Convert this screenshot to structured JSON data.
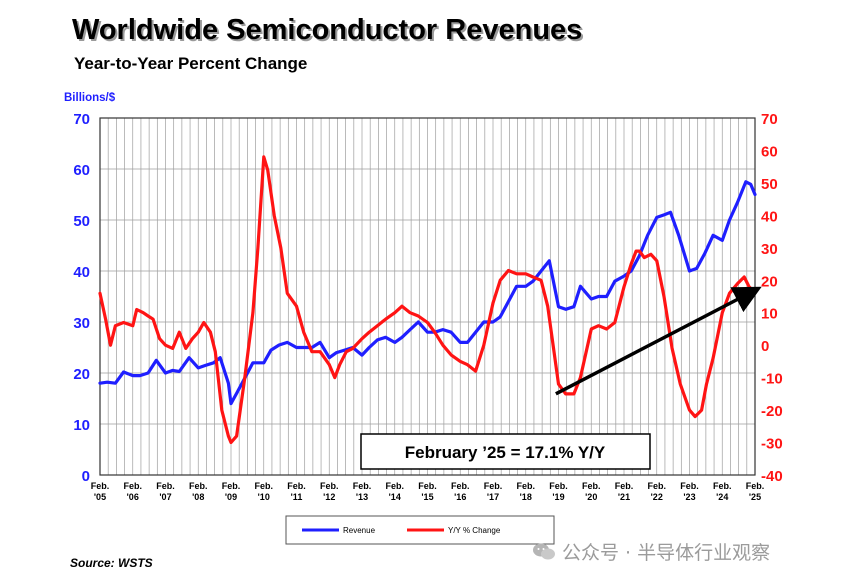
{
  "title": "Worldwide Semiconductor Revenues",
  "subtitle": "Year-to-Year Percent Change",
  "source": "Source: WSTS",
  "watermark": "公众号 · 半导体行业观察",
  "callout": "February ’25 = 17.1% Y/Y",
  "colors": {
    "revenue": "#1f1fff",
    "yoy": "#ff1414",
    "grid": "#9e9e9e",
    "plot_bg": "#ffffff"
  },
  "chart_data": {
    "type": "line",
    "y_left_unit_label": "Billions/$",
    "y_left": {
      "min": 0,
      "max": 70,
      "ticks": [
        0,
        10,
        20,
        30,
        40,
        50,
        60,
        70
      ]
    },
    "y_right": {
      "min": -40,
      "max": 70,
      "ticks": [
        -40,
        -30,
        -20,
        -10,
        0,
        10,
        20,
        30,
        40,
        50,
        60,
        70
      ]
    },
    "x_ticks": [
      {
        "top": "Feb.",
        "bottom": "'05",
        "x": 2005.08
      },
      {
        "top": "Feb.",
        "bottom": "'06",
        "x": 2006.08
      },
      {
        "top": "Feb.",
        "bottom": "'07",
        "x": 2007.08
      },
      {
        "top": "Feb.",
        "bottom": "'08",
        "x": 2008.08
      },
      {
        "top": "Feb.",
        "bottom": "'09",
        "x": 2009.08
      },
      {
        "top": "Feb.",
        "bottom": "'10",
        "x": 2010.08
      },
      {
        "top": "Feb.",
        "bottom": "'11",
        "x": 2011.08
      },
      {
        "top": "Feb.",
        "bottom": "'12",
        "x": 2012.08
      },
      {
        "top": "Feb.",
        "bottom": "'13",
        "x": 2013.08
      },
      {
        "top": "Feb.",
        "bottom": "'14",
        "x": 2014.08
      },
      {
        "top": "Feb.",
        "bottom": "'15",
        "x": 2015.08
      },
      {
        "top": "Feb.",
        "bottom": "'16",
        "x": 2016.08
      },
      {
        "top": "Feb.",
        "bottom": "'17",
        "x": 2017.08
      },
      {
        "top": "Feb.",
        "bottom": "'18",
        "x": 2018.08
      },
      {
        "top": "Feb.",
        "bottom": "'19",
        "x": 2019.08
      },
      {
        "top": "Feb.",
        "bottom": "'20",
        "x": 2020.08
      },
      {
        "top": "Feb.",
        "bottom": "'21",
        "x": 2021.08
      },
      {
        "top": "Feb.",
        "bottom": "'22",
        "x": 2022.08
      },
      {
        "top": "Feb.",
        "bottom": "'23",
        "x": 2023.08
      },
      {
        "top": "Feb.",
        "bottom": "'24",
        "x": 2024.08
      },
      {
        "top": "Feb.",
        "bottom": "'25",
        "x": 2025.08
      }
    ],
    "grid": true,
    "legend_placement": "bottom-center",
    "series": [
      {
        "name": "Revenue",
        "axis": "left",
        "color": "#1f1fff",
        "points": [
          [
            2005.08,
            18
          ],
          [
            2005.3,
            18.2
          ],
          [
            2005.55,
            18
          ],
          [
            2005.8,
            20.2
          ],
          [
            2006.08,
            19.5
          ],
          [
            2006.3,
            19.5
          ],
          [
            2006.55,
            20
          ],
          [
            2006.8,
            22.5
          ],
          [
            2007.08,
            20
          ],
          [
            2007.3,
            20.5
          ],
          [
            2007.5,
            20.3
          ],
          [
            2007.8,
            23
          ],
          [
            2008.08,
            21
          ],
          [
            2008.3,
            21.5
          ],
          [
            2008.55,
            22
          ],
          [
            2008.75,
            23
          ],
          [
            2009.0,
            18
          ],
          [
            2009.08,
            14
          ],
          [
            2009.25,
            16
          ],
          [
            2009.5,
            19
          ],
          [
            2009.75,
            22
          ],
          [
            2010.08,
            22
          ],
          [
            2010.3,
            24.5
          ],
          [
            2010.55,
            25.5
          ],
          [
            2010.8,
            26
          ],
          [
            2011.08,
            25
          ],
          [
            2011.3,
            25
          ],
          [
            2011.55,
            25
          ],
          [
            2011.8,
            26
          ],
          [
            2012.08,
            23
          ],
          [
            2012.3,
            24
          ],
          [
            2012.55,
            24.5
          ],
          [
            2012.8,
            25
          ],
          [
            2013.08,
            23.5
          ],
          [
            2013.3,
            25
          ],
          [
            2013.55,
            26.5
          ],
          [
            2013.8,
            27
          ],
          [
            2014.08,
            26
          ],
          [
            2014.3,
            27
          ],
          [
            2014.55,
            28.5
          ],
          [
            2014.8,
            30
          ],
          [
            2015.08,
            28
          ],
          [
            2015.3,
            28
          ],
          [
            2015.55,
            28.5
          ],
          [
            2015.8,
            28
          ],
          [
            2016.08,
            26
          ],
          [
            2016.3,
            26
          ],
          [
            2016.55,
            28
          ],
          [
            2016.8,
            30
          ],
          [
            2017.08,
            30
          ],
          [
            2017.3,
            31
          ],
          [
            2017.55,
            34
          ],
          [
            2017.8,
            37
          ],
          [
            2018.08,
            37
          ],
          [
            2018.3,
            38
          ],
          [
            2018.55,
            40
          ],
          [
            2018.8,
            42
          ],
          [
            2019.08,
            33
          ],
          [
            2019.3,
            32.5
          ],
          [
            2019.55,
            33
          ],
          [
            2019.75,
            37
          ],
          [
            2020.08,
            34.5
          ],
          [
            2020.3,
            35
          ],
          [
            2020.55,
            35
          ],
          [
            2020.8,
            38
          ],
          [
            2021.08,
            39
          ],
          [
            2021.3,
            40
          ],
          [
            2021.55,
            43
          ],
          [
            2021.8,
            47
          ],
          [
            2022.08,
            50.5
          ],
          [
            2022.3,
            51
          ],
          [
            2022.5,
            51.5
          ],
          [
            2022.75,
            47
          ],
          [
            2023.08,
            40
          ],
          [
            2023.3,
            40.5
          ],
          [
            2023.55,
            43.5
          ],
          [
            2023.8,
            47
          ],
          [
            2024.08,
            46
          ],
          [
            2024.3,
            50
          ],
          [
            2024.55,
            53.5
          ],
          [
            2024.8,
            57.5
          ],
          [
            2024.95,
            57
          ],
          [
            2025.08,
            55
          ]
        ]
      },
      {
        "name": "Y/Y % Change",
        "axis": "right",
        "color": "#ff1414",
        "points": [
          [
            2005.08,
            16
          ],
          [
            2005.25,
            8
          ],
          [
            2005.4,
            0
          ],
          [
            2005.55,
            6
          ],
          [
            2005.8,
            7
          ],
          [
            2006.08,
            6
          ],
          [
            2006.2,
            11
          ],
          [
            2006.4,
            10
          ],
          [
            2006.55,
            9
          ],
          [
            2006.7,
            8
          ],
          [
            2006.9,
            2
          ],
          [
            2007.08,
            0
          ],
          [
            2007.3,
            -1
          ],
          [
            2007.5,
            4
          ],
          [
            2007.7,
            -1
          ],
          [
            2007.9,
            2
          ],
          [
            2008.08,
            4
          ],
          [
            2008.25,
            7
          ],
          [
            2008.45,
            4
          ],
          [
            2008.6,
            -2
          ],
          [
            2008.8,
            -20
          ],
          [
            2009.0,
            -28
          ],
          [
            2009.08,
            -30
          ],
          [
            2009.25,
            -28
          ],
          [
            2009.5,
            -10
          ],
          [
            2009.75,
            10
          ],
          [
            2009.9,
            30
          ],
          [
            2010.08,
            58
          ],
          [
            2010.2,
            54
          ],
          [
            2010.4,
            40
          ],
          [
            2010.6,
            30
          ],
          [
            2010.8,
            16
          ],
          [
            2011.08,
            12
          ],
          [
            2011.3,
            4
          ],
          [
            2011.55,
            -2
          ],
          [
            2011.8,
            -2
          ],
          [
            2012.08,
            -6
          ],
          [
            2012.25,
            -10
          ],
          [
            2012.4,
            -6
          ],
          [
            2012.6,
            -2
          ],
          [
            2012.8,
            -1
          ],
          [
            2013.08,
            2
          ],
          [
            2013.3,
            4
          ],
          [
            2013.55,
            6
          ],
          [
            2013.8,
            8
          ],
          [
            2014.08,
            10
          ],
          [
            2014.3,
            12
          ],
          [
            2014.55,
            10
          ],
          [
            2014.8,
            9
          ],
          [
            2015.08,
            7
          ],
          [
            2015.3,
            4
          ],
          [
            2015.55,
            0
          ],
          [
            2015.8,
            -3
          ],
          [
            2016.08,
            -5
          ],
          [
            2016.3,
            -6
          ],
          [
            2016.55,
            -8
          ],
          [
            2016.8,
            0
          ],
          [
            2017.08,
            13
          ],
          [
            2017.3,
            20
          ],
          [
            2017.55,
            23
          ],
          [
            2017.8,
            22
          ],
          [
            2018.08,
            22
          ],
          [
            2018.3,
            21
          ],
          [
            2018.55,
            20
          ],
          [
            2018.75,
            12
          ],
          [
            2019.08,
            -12
          ],
          [
            2019.3,
            -15
          ],
          [
            2019.55,
            -15
          ],
          [
            2019.75,
            -10
          ],
          [
            2020.08,
            5
          ],
          [
            2020.3,
            6
          ],
          [
            2020.55,
            5
          ],
          [
            2020.8,
            7
          ],
          [
            2021.08,
            18
          ],
          [
            2021.3,
            25
          ],
          [
            2021.45,
            29
          ],
          [
            2021.55,
            29
          ],
          [
            2021.7,
            27
          ],
          [
            2021.9,
            28
          ],
          [
            2022.08,
            26
          ],
          [
            2022.3,
            15
          ],
          [
            2022.55,
            -1
          ],
          [
            2022.8,
            -12
          ],
          [
            2023.08,
            -20
          ],
          [
            2023.25,
            -22
          ],
          [
            2023.45,
            -20
          ],
          [
            2023.6,
            -12
          ],
          [
            2023.8,
            -4
          ],
          [
            2024.08,
            10
          ],
          [
            2024.3,
            16
          ],
          [
            2024.55,
            19
          ],
          [
            2024.75,
            21
          ],
          [
            2024.9,
            18
          ],
          [
            2025.0,
            17
          ],
          [
            2025.08,
            17.1
          ]
        ]
      }
    ],
    "arrow": {
      "from": [
        2019.0,
        -15
      ],
      "to": [
        2025.0,
        16.5
      ]
    }
  }
}
